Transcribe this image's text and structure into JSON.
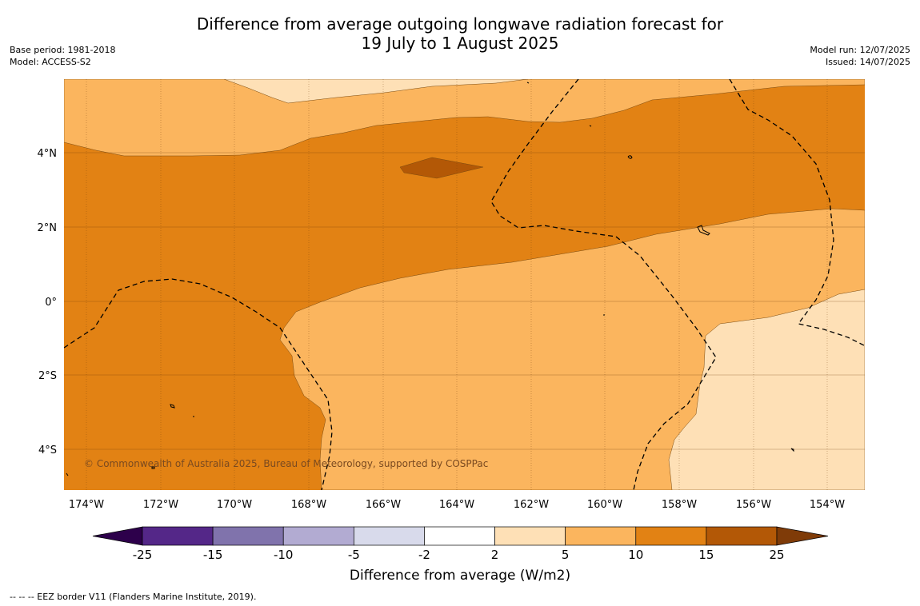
{
  "title": {
    "line1": "Difference from average outgoing longwave radiation forecast for",
    "line2": "19 July to 1 August 2025"
  },
  "meta_left": {
    "base_period": "Base period: 1981-2018",
    "model": "Model: ACCESS-S2"
  },
  "meta_right": {
    "model_run": "Model run: 12/07/2025",
    "issued": "Issued: 14/07/2025"
  },
  "map": {
    "lat_labels": [
      "4°N",
      "2°N",
      "0°",
      "2°S",
      "4°S"
    ],
    "lon_labels": [
      "174°W",
      "172°W",
      "170°W",
      "168°W",
      "166°W",
      "164°W",
      "162°W",
      "160°W",
      "158°W",
      "156°W",
      "154°W"
    ],
    "copyright": "© Commonwealth of Australia 2025, Bureau of Meteorology, supported by COSPPac",
    "class_colors": {
      "5-10": "#fbb55e",
      "10-15": "#e28214",
      "15-25": "#b35806",
      "2-5": "#fee0b6"
    }
  },
  "colorbar": {
    "labels": [
      "-25",
      "-15",
      "-10",
      "-5",
      "-2",
      "2",
      "5",
      "10",
      "15",
      "25"
    ],
    "colors": [
      "#2d004b",
      "#542788",
      "#8073ac",
      "#b2abd2",
      "#d8daeb",
      "#ffffff",
      "#fee0b6",
      "#fbb55e",
      "#e28214",
      "#b35806",
      "#7f3b08"
    ],
    "label": "Difference from average (W/m2)"
  },
  "footnote": "--  --  -- EEZ border V11 (Flanders Marine Institute, 2019)."
}
